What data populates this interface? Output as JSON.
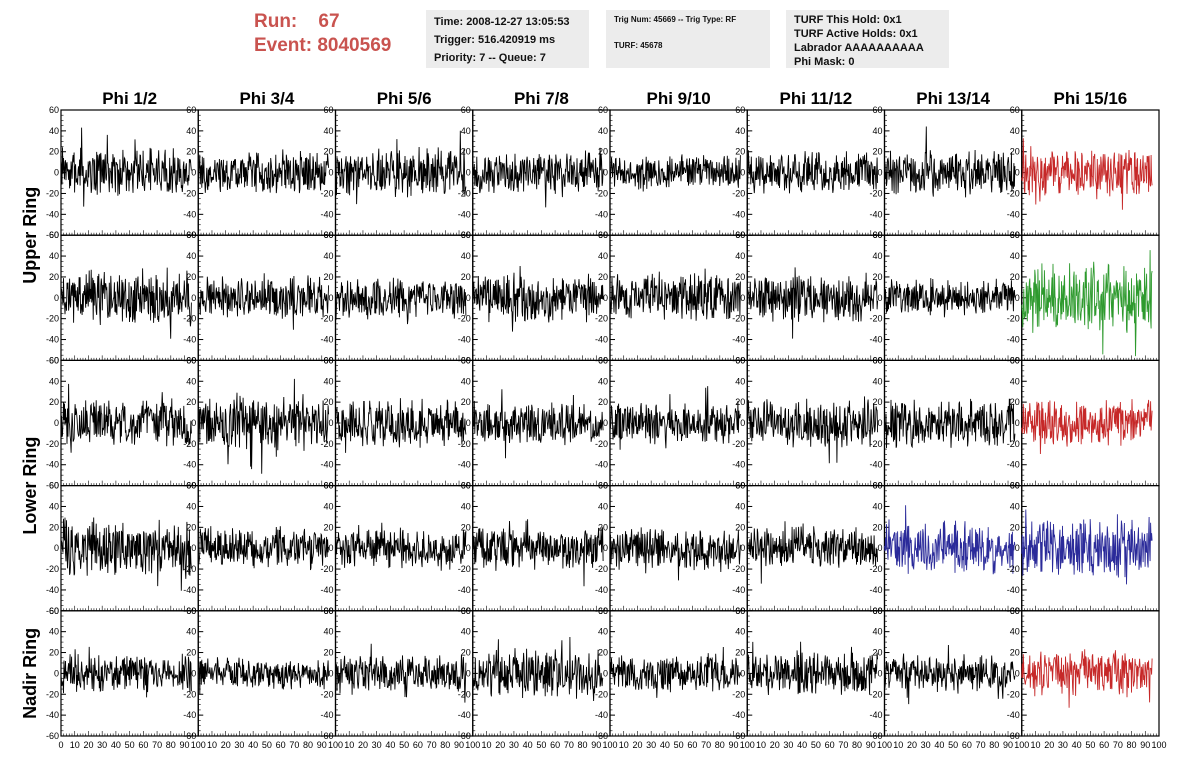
{
  "run_label": "Run:",
  "run_value": "67",
  "event_label": "Event:",
  "event_value": "8040569",
  "box1": {
    "time": "Time: 2008-12-27 13:05:53",
    "trigger": "Trigger: 516.420919 ms",
    "priority": "Priority: 7 -- Queue: 7"
  },
  "box2": {
    "trig": "Trig Num: 45669 -- Trig Type: RF",
    "turf": "TURF: 45678"
  },
  "box3": {
    "hold": "TURF This Hold: 0x1",
    "active": "TURF Active Holds: 0x1",
    "labrador": "Labrador AAAAAAAAAA",
    "phimask": "Phi Mask: 0"
  },
  "columns": [
    "Phi 1/2",
    "Phi 3/4",
    "Phi 5/6",
    "Phi 7/8",
    "Phi 9/10",
    "Phi 11/12",
    "Phi 13/14",
    "Phi 15/16"
  ],
  "row_groups": [
    "Upper Ring",
    "Lower Ring",
    "Nadir Ring"
  ],
  "chart_data": {
    "type": "line",
    "title": "",
    "xlabel": "",
    "ylabel": "",
    "xlim": [
      0,
      100
    ],
    "ylim": [
      -60,
      60
    ],
    "y_ticks": [
      -60,
      -40,
      -20,
      0,
      20,
      40,
      60
    ],
    "x_ticks": [
      0,
      10,
      20,
      30,
      40,
      50,
      60,
      70,
      80,
      90,
      100
    ],
    "rows": 5,
    "cols": 8,
    "trace_colors": {
      "default": "#000000",
      "red": "#c62828",
      "green": "#2e9a2e",
      "blue": "#2b2b9a"
    },
    "trace_color_grid": [
      [
        "default",
        "default",
        "default",
        "default",
        "default",
        "default",
        "default",
        "red"
      ],
      [
        "default",
        "default",
        "default",
        "default",
        "default",
        "default",
        "default",
        "green"
      ],
      [
        "default",
        "default",
        "default",
        "default",
        "default",
        "default",
        "default",
        "red"
      ],
      [
        "default",
        "default",
        "default",
        "default",
        "default",
        "default",
        "blue",
        "blue"
      ],
      [
        "default",
        "default",
        "default",
        "default",
        "default",
        "default",
        "default",
        "red"
      ]
    ],
    "trace_amplitude_grid": [
      [
        18,
        16,
        18,
        16,
        14,
        16,
        18,
        18
      ],
      [
        20,
        16,
        16,
        18,
        18,
        18,
        14,
        26
      ],
      [
        18,
        20,
        18,
        16,
        16,
        18,
        18,
        18
      ],
      [
        22,
        16,
        16,
        16,
        16,
        16,
        20,
        22
      ],
      [
        14,
        12,
        14,
        18,
        14,
        16,
        14,
        18
      ]
    ],
    "trace_points": 260,
    "trace_x_range": [
      0,
      95
    ]
  }
}
